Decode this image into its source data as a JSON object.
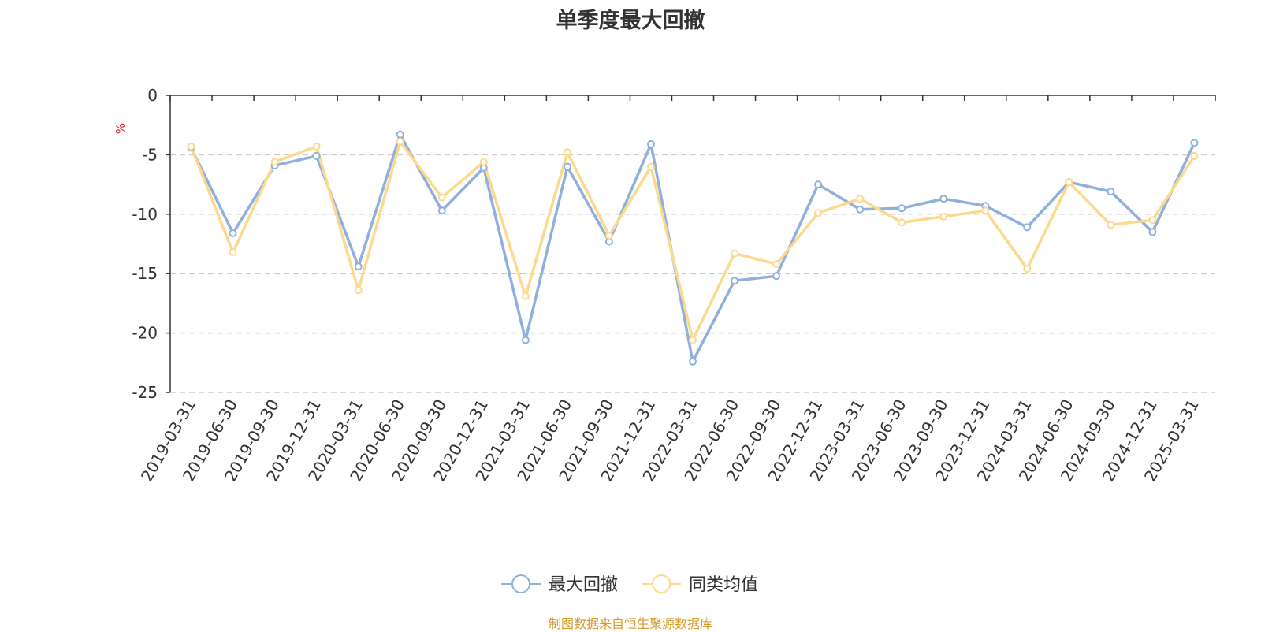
{
  "chart_data": {
    "type": "line",
    "title": "单季度最大回撤",
    "ylabel": "%",
    "xlabel": "",
    "ylim": [
      -25,
      0
    ],
    "yticks": [
      0,
      -5,
      -10,
      -15,
      -20,
      -25
    ],
    "grid": true,
    "legend_position": "bottom",
    "categories": [
      "2019-03-31",
      "2019-06-30",
      "2019-09-30",
      "2019-12-31",
      "2020-03-31",
      "2020-06-30",
      "2020-09-30",
      "2020-12-31",
      "2021-03-31",
      "2021-06-30",
      "2021-09-30",
      "2021-12-31",
      "2022-03-31",
      "2022-06-30",
      "2022-09-30",
      "2022-12-31",
      "2023-03-31",
      "2023-06-30",
      "2023-09-30",
      "2023-12-31",
      "2024-03-31",
      "2024-06-30",
      "2024-09-30",
      "2024-12-31",
      "2025-03-31"
    ],
    "series": [
      {
        "name": "最大回撤",
        "color": "#8fb0dc",
        "values": [
          -4.4,
          -11.6,
          -5.9,
          -5.1,
          -14.4,
          -3.3,
          -9.7,
          -6.1,
          -20.6,
          -6.0,
          -12.3,
          -4.1,
          -22.4,
          -15.6,
          -15.2,
          -7.5,
          -9.6,
          -9.5,
          -8.7,
          -9.3,
          -11.1,
          -7.3,
          -8.1,
          -11.5,
          -4.0
        ]
      },
      {
        "name": "同类均值",
        "color": "#fcd98c",
        "values": [
          -4.3,
          -13.2,
          -5.6,
          -4.3,
          -16.4,
          -3.9,
          -8.6,
          -5.6,
          -16.9,
          -4.8,
          -11.8,
          -6.0,
          -20.6,
          -13.3,
          -14.2,
          -9.9,
          -8.7,
          -10.7,
          -10.2,
          -9.7,
          -14.6,
          -7.3,
          -10.9,
          -10.5,
          -5.1
        ]
      }
    ]
  },
  "footer": {
    "source": "制图数据来自恒生聚源数据库"
  }
}
